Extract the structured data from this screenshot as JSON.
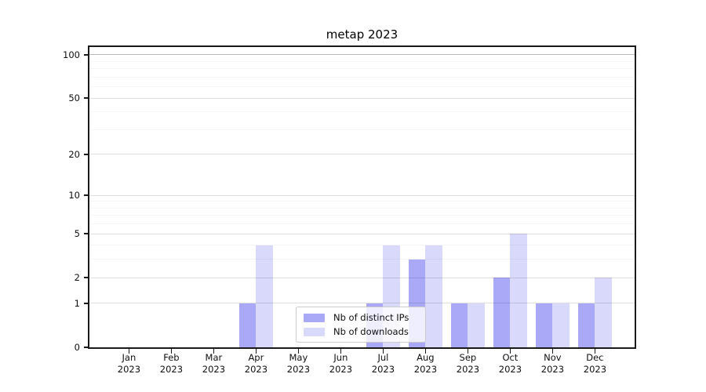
{
  "chart_data": {
    "type": "bar",
    "title": "metap 2023",
    "xlabel": "",
    "ylabel": "",
    "scale": "log1p",
    "grid": true,
    "legend_position": "lower-center",
    "ylim": [
      0,
      114
    ],
    "yticks": [
      0,
      1,
      2,
      5,
      10,
      20,
      50,
      100
    ],
    "y_minor_gridlines": [
      3,
      4,
      6,
      7,
      8,
      9,
      30,
      40,
      60,
      70,
      80,
      90
    ],
    "categories": [
      "Jan 2023",
      "Feb 2023",
      "Mar 2023",
      "Apr 2023",
      "May 2023",
      "Jun 2023",
      "Jul 2023",
      "Aug 2023",
      "Sep 2023",
      "Oct 2023",
      "Nov 2023",
      "Dec 2023"
    ],
    "series": [
      {
        "name": "Nb of distinct IPs",
        "color": "#a9a9f7",
        "values": [
          0,
          0,
          0,
          1,
          0,
          0,
          1,
          3,
          1,
          2,
          1,
          1
        ]
      },
      {
        "name": "Nb of downloads",
        "color": "#d9d9fb",
        "values": [
          0,
          0,
          0,
          4,
          0,
          0,
          4,
          4,
          1,
          5,
          1,
          2
        ]
      }
    ],
    "colors": {
      "grid_major": "#dedede",
      "grid_minor": "#f4f4f4",
      "grid_top_line": "#b8b8b8",
      "axis_spine": "#1a1a1a",
      "text": "#0f0f0f",
      "background": "#ffffff"
    }
  }
}
